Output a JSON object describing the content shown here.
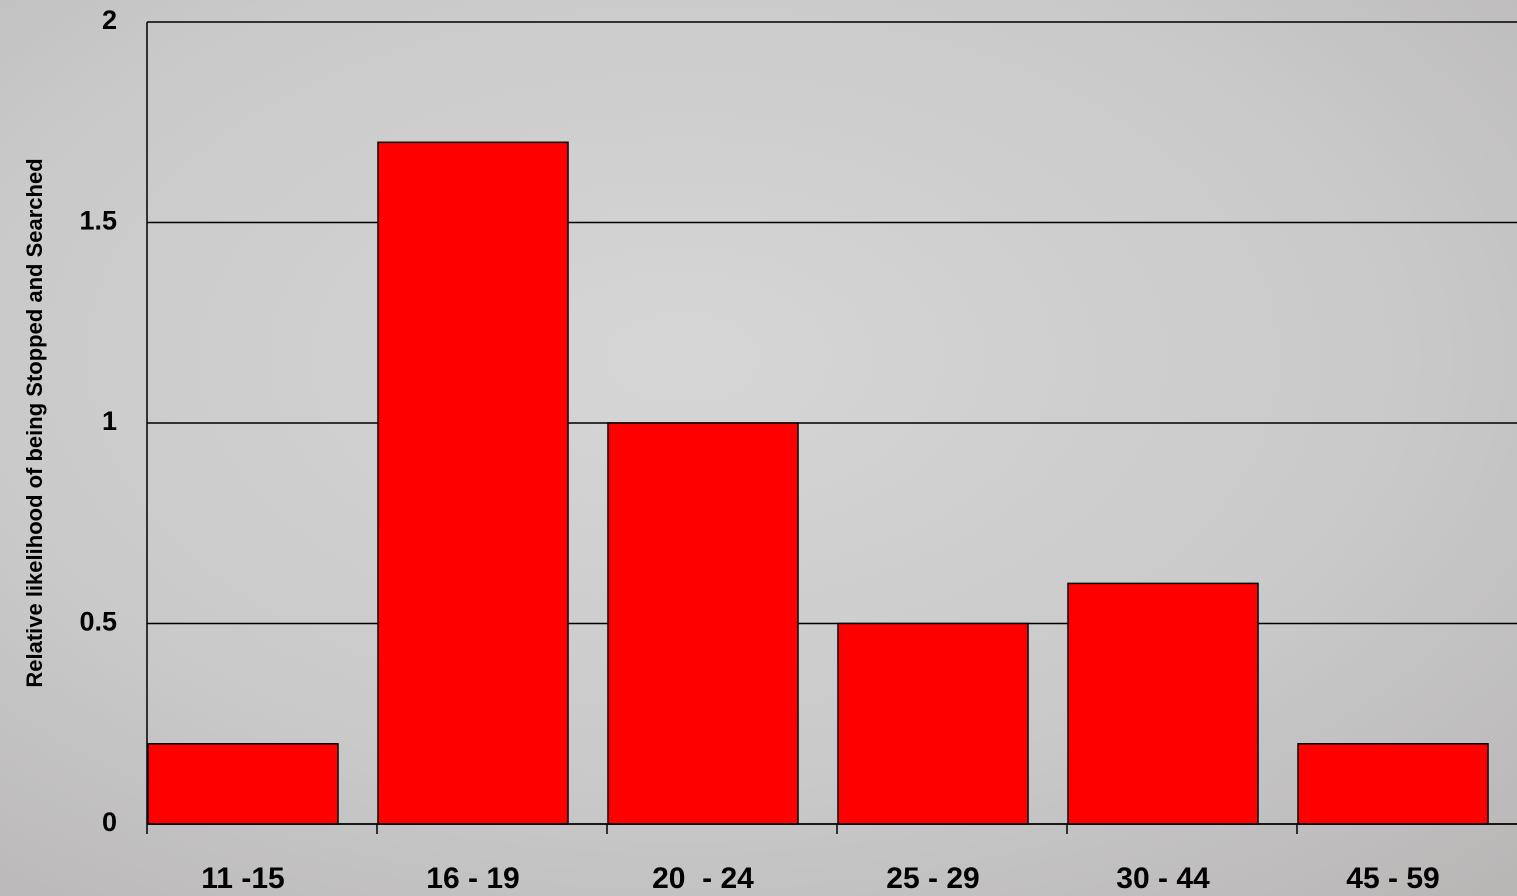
{
  "chart_data": {
    "type": "bar",
    "y_label": "Relative likelihood of being Stopped and Searched",
    "categories": [
      "11 -15",
      "16 - 19",
      "20  - 24",
      "25 - 29",
      "30 - 44",
      "45 - 59"
    ],
    "values": [
      0.2,
      1.7,
      1.0,
      0.5,
      0.6,
      0.2
    ],
    "color": "#ff0000",
    "ylim": [
      0,
      2
    ],
    "yticks": [
      0,
      0.5,
      1,
      1.5,
      2
    ],
    "grid": true
  }
}
